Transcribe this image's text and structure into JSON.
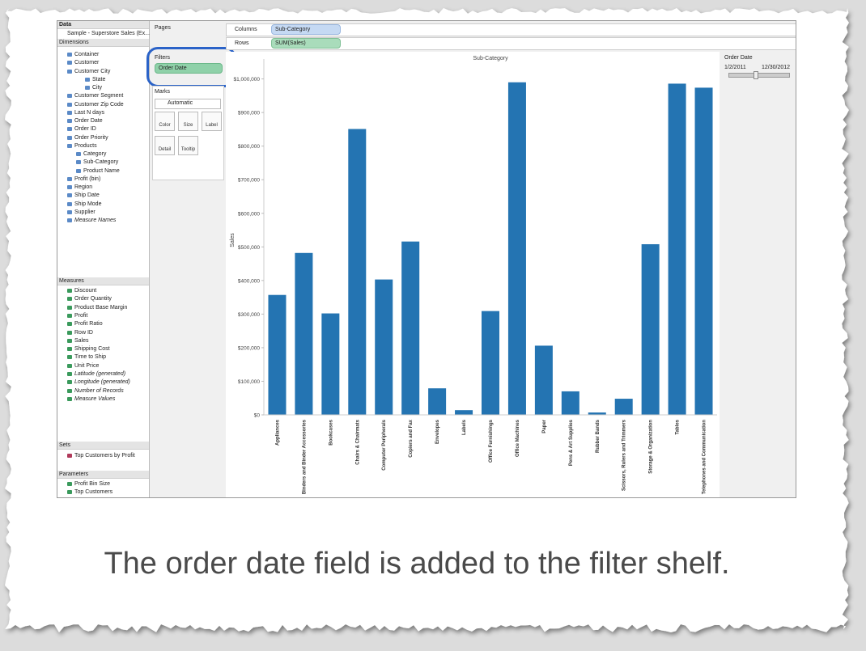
{
  "data_pane": {
    "header": "Data",
    "source": "Sample - Superstore Sales (Ex...",
    "dimensions_label": "Dimensions",
    "dimensions": [
      "Container",
      "Customer",
      "Customer City",
      "State",
      "City",
      "Customer Segment",
      "Customer Zip Code",
      "Last N days",
      "Order Date",
      "Order ID",
      "Order Priority",
      "Products",
      "Category",
      "Sub-Category",
      "Product Name",
      "Profit (bin)",
      "Region",
      "Ship Date",
      "Ship Mode",
      "Supplier",
      "Measure Names"
    ],
    "measures_label": "Measures",
    "measures": [
      "Discount",
      "Order Quantity",
      "Product Base Margin",
      "Profit",
      "Profit Ratio",
      "Row ID",
      "Sales",
      "Shipping Cost",
      "Time to Ship",
      "Unit Price",
      "Latitude (generated)",
      "Longitude (generated)",
      "Number of Records",
      "Measure Values"
    ],
    "sets_label": "Sets",
    "sets": [
      "Top Customers by Profit"
    ],
    "parameters_label": "Parameters",
    "parameters": [
      "Profit Bin Size",
      "Top Customers"
    ]
  },
  "shelves": {
    "pages_label": "Pages",
    "filters_label": "Filters",
    "filter_pill": "Order Date",
    "marks_label": "Marks",
    "mark_type": "Automatic",
    "mark_buttons": [
      "Color",
      "Size",
      "Label",
      "Detail",
      "Tooltip"
    ],
    "columns_label": "Columns",
    "columns_pill": "Sub-Category",
    "rows_label": "Rows",
    "rows_pill": "SUM(Sales)"
  },
  "chart_data": {
    "type": "bar",
    "title": "Sub-Category",
    "y_label": "Sales",
    "color": "#2474b2",
    "categories": [
      "Appliances",
      "Binders and Binder Accessories",
      "Bookcases",
      "Chairs & Chairmats",
      "Computer Peripherals",
      "Copiers and Fax",
      "Envelopes",
      "Labels",
      "Office Furnishings",
      "Office Machines",
      "Paper",
      "Pens & Art Supplies",
      "Rubber Bands",
      "Scissors, Rulers and Trimmers",
      "Storage & Organization",
      "Tables",
      "Telephones and Communication"
    ],
    "values": [
      357000,
      482000,
      302000,
      851000,
      403000,
      516000,
      79000,
      14000,
      309000,
      990000,
      206000,
      70000,
      7000,
      48000,
      508000,
      986000,
      974000
    ],
    "ylim": [
      0,
      1040000
    ],
    "yticks": [
      {
        "value": 0,
        "label": "$0"
      },
      {
        "value": 100000,
        "label": "$100,000"
      },
      {
        "value": 200000,
        "label": "$200,000"
      },
      {
        "value": 300000,
        "label": "$300,000"
      },
      {
        "value": 400000,
        "label": "$400,000"
      },
      {
        "value": 500000,
        "label": "$500,000"
      },
      {
        "value": 600000,
        "label": "$600,000"
      },
      {
        "value": 700000,
        "label": "$700,000"
      },
      {
        "value": 800000,
        "label": "$800,000"
      },
      {
        "value": 900000,
        "label": "$900,000"
      },
      {
        "value": 1000000,
        "label": "$1,000,000"
      }
    ]
  },
  "filter_card": {
    "title": "Order Date",
    "start": "1/2/2011",
    "end": "12/30/2012"
  },
  "caption": "The order date field is added to the filter shelf."
}
